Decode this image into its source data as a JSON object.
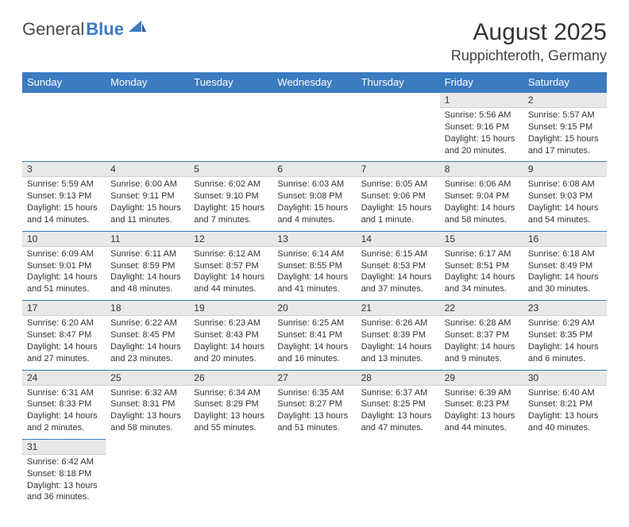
{
  "logo": {
    "text1": "General",
    "text2": "Blue"
  },
  "title": {
    "month": "August 2025",
    "location": "Ruppichteroth, Germany"
  },
  "columns": [
    "Sunday",
    "Monday",
    "Tuesday",
    "Wednesday",
    "Thursday",
    "Friday",
    "Saturday"
  ],
  "colors": {
    "header_bg": "#3b7bbf",
    "header_text": "#ffffff",
    "daynum_bg": "#e8e8e8",
    "row_border": "#3b7bbf"
  },
  "weeks": [
    [
      null,
      null,
      null,
      null,
      null,
      {
        "n": "1",
        "a": "Sunrise: 5:56 AM",
        "b": "Sunset: 9:16 PM",
        "c": "Daylight: 15 hours",
        "d": "and 20 minutes."
      },
      {
        "n": "2",
        "a": "Sunrise: 5:57 AM",
        "b": "Sunset: 9:15 PM",
        "c": "Daylight: 15 hours",
        "d": "and 17 minutes."
      }
    ],
    [
      {
        "n": "3",
        "a": "Sunrise: 5:59 AM",
        "b": "Sunset: 9:13 PM",
        "c": "Daylight: 15 hours",
        "d": "and 14 minutes."
      },
      {
        "n": "4",
        "a": "Sunrise: 6:00 AM",
        "b": "Sunset: 9:11 PM",
        "c": "Daylight: 15 hours",
        "d": "and 11 minutes."
      },
      {
        "n": "5",
        "a": "Sunrise: 6:02 AM",
        "b": "Sunset: 9:10 PM",
        "c": "Daylight: 15 hours",
        "d": "and 7 minutes."
      },
      {
        "n": "6",
        "a": "Sunrise: 6:03 AM",
        "b": "Sunset: 9:08 PM",
        "c": "Daylight: 15 hours",
        "d": "and 4 minutes."
      },
      {
        "n": "7",
        "a": "Sunrise: 6:05 AM",
        "b": "Sunset: 9:06 PM",
        "c": "Daylight: 15 hours",
        "d": "and 1 minute."
      },
      {
        "n": "8",
        "a": "Sunrise: 6:06 AM",
        "b": "Sunset: 9:04 PM",
        "c": "Daylight: 14 hours",
        "d": "and 58 minutes."
      },
      {
        "n": "9",
        "a": "Sunrise: 6:08 AM",
        "b": "Sunset: 9:03 PM",
        "c": "Daylight: 14 hours",
        "d": "and 54 minutes."
      }
    ],
    [
      {
        "n": "10",
        "a": "Sunrise: 6:09 AM",
        "b": "Sunset: 9:01 PM",
        "c": "Daylight: 14 hours",
        "d": "and 51 minutes."
      },
      {
        "n": "11",
        "a": "Sunrise: 6:11 AM",
        "b": "Sunset: 8:59 PM",
        "c": "Daylight: 14 hours",
        "d": "and 48 minutes."
      },
      {
        "n": "12",
        "a": "Sunrise: 6:12 AM",
        "b": "Sunset: 8:57 PM",
        "c": "Daylight: 14 hours",
        "d": "and 44 minutes."
      },
      {
        "n": "13",
        "a": "Sunrise: 6:14 AM",
        "b": "Sunset: 8:55 PM",
        "c": "Daylight: 14 hours",
        "d": "and 41 minutes."
      },
      {
        "n": "14",
        "a": "Sunrise: 6:15 AM",
        "b": "Sunset: 8:53 PM",
        "c": "Daylight: 14 hours",
        "d": "and 37 minutes."
      },
      {
        "n": "15",
        "a": "Sunrise: 6:17 AM",
        "b": "Sunset: 8:51 PM",
        "c": "Daylight: 14 hours",
        "d": "and 34 minutes."
      },
      {
        "n": "16",
        "a": "Sunrise: 6:18 AM",
        "b": "Sunset: 8:49 PM",
        "c": "Daylight: 14 hours",
        "d": "and 30 minutes."
      }
    ],
    [
      {
        "n": "17",
        "a": "Sunrise: 6:20 AM",
        "b": "Sunset: 8:47 PM",
        "c": "Daylight: 14 hours",
        "d": "and 27 minutes."
      },
      {
        "n": "18",
        "a": "Sunrise: 6:22 AM",
        "b": "Sunset: 8:45 PM",
        "c": "Daylight: 14 hours",
        "d": "and 23 minutes."
      },
      {
        "n": "19",
        "a": "Sunrise: 6:23 AM",
        "b": "Sunset: 8:43 PM",
        "c": "Daylight: 14 hours",
        "d": "and 20 minutes."
      },
      {
        "n": "20",
        "a": "Sunrise: 6:25 AM",
        "b": "Sunset: 8:41 PM",
        "c": "Daylight: 14 hours",
        "d": "and 16 minutes."
      },
      {
        "n": "21",
        "a": "Sunrise: 6:26 AM",
        "b": "Sunset: 8:39 PM",
        "c": "Daylight: 14 hours",
        "d": "and 13 minutes."
      },
      {
        "n": "22",
        "a": "Sunrise: 6:28 AM",
        "b": "Sunset: 8:37 PM",
        "c": "Daylight: 14 hours",
        "d": "and 9 minutes."
      },
      {
        "n": "23",
        "a": "Sunrise: 6:29 AM",
        "b": "Sunset: 8:35 PM",
        "c": "Daylight: 14 hours",
        "d": "and 6 minutes."
      }
    ],
    [
      {
        "n": "24",
        "a": "Sunrise: 6:31 AM",
        "b": "Sunset: 8:33 PM",
        "c": "Daylight: 14 hours",
        "d": "and 2 minutes."
      },
      {
        "n": "25",
        "a": "Sunrise: 6:32 AM",
        "b": "Sunset: 8:31 PM",
        "c": "Daylight: 13 hours",
        "d": "and 58 minutes."
      },
      {
        "n": "26",
        "a": "Sunrise: 6:34 AM",
        "b": "Sunset: 8:29 PM",
        "c": "Daylight: 13 hours",
        "d": "and 55 minutes."
      },
      {
        "n": "27",
        "a": "Sunrise: 6:35 AM",
        "b": "Sunset: 8:27 PM",
        "c": "Daylight: 13 hours",
        "d": "and 51 minutes."
      },
      {
        "n": "28",
        "a": "Sunrise: 6:37 AM",
        "b": "Sunset: 8:25 PM",
        "c": "Daylight: 13 hours",
        "d": "and 47 minutes."
      },
      {
        "n": "29",
        "a": "Sunrise: 6:39 AM",
        "b": "Sunset: 8:23 PM",
        "c": "Daylight: 13 hours",
        "d": "and 44 minutes."
      },
      {
        "n": "30",
        "a": "Sunrise: 6:40 AM",
        "b": "Sunset: 8:21 PM",
        "c": "Daylight: 13 hours",
        "d": "and 40 minutes."
      }
    ],
    [
      {
        "n": "31",
        "a": "Sunrise: 6:42 AM",
        "b": "Sunset: 8:18 PM",
        "c": "Daylight: 13 hours",
        "d": "and 36 minutes."
      },
      null,
      null,
      null,
      null,
      null,
      null
    ]
  ]
}
